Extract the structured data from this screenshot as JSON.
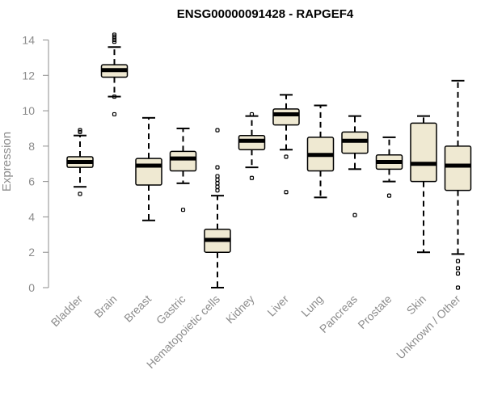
{
  "chart_data": {
    "type": "boxplot",
    "title": "ENSG00000091428 - RAPGEF4",
    "xlabel": "",
    "ylabel": "Expression",
    "ylim": [
      0,
      14
    ],
    "yticks": [
      0,
      2,
      4,
      6,
      8,
      10,
      12,
      14
    ],
    "box_color": "#efe9d2",
    "categories": [
      "Bladder",
      "Brain",
      "Breast",
      "Gastric",
      "Hematopoietic cells",
      "Kidney",
      "Liver",
      "Lung",
      "Pancreas",
      "Prostate",
      "Skin",
      "Unknown / Other"
    ],
    "boxes": [
      {
        "min": 5.7,
        "q1": 6.8,
        "median": 7.1,
        "q3": 7.4,
        "max": 8.6,
        "outliers": [
          5.3,
          8.8,
          8.9
        ]
      },
      {
        "min": 10.8,
        "q1": 11.9,
        "median": 12.3,
        "q3": 12.6,
        "max": 13.6,
        "outliers": [
          9.8,
          10.8,
          13.9,
          14.0,
          14.1,
          14.2,
          14.3
        ]
      },
      {
        "min": 3.8,
        "q1": 5.8,
        "median": 6.9,
        "q3": 7.3,
        "max": 9.6,
        "outliers": []
      },
      {
        "min": 5.9,
        "q1": 6.6,
        "median": 7.3,
        "q3": 7.7,
        "max": 9.0,
        "outliers": [
          4.4
        ]
      },
      {
        "min": 0.0,
        "q1": 2.0,
        "median": 2.7,
        "q3": 3.3,
        "max": 5.2,
        "outliers": [
          5.5,
          5.7,
          5.9,
          6.1,
          6.3,
          6.8,
          8.9
        ]
      },
      {
        "min": 6.8,
        "q1": 7.8,
        "median": 8.3,
        "q3": 8.6,
        "max": 9.7,
        "outliers": [
          6.2,
          9.8
        ]
      },
      {
        "min": 7.8,
        "q1": 9.2,
        "median": 9.8,
        "q3": 10.1,
        "max": 10.9,
        "outliers": [
          5.4,
          7.4
        ]
      },
      {
        "min": 5.1,
        "q1": 6.6,
        "median": 7.5,
        "q3": 8.5,
        "max": 10.3,
        "outliers": []
      },
      {
        "min": 6.7,
        "q1": 7.6,
        "median": 8.3,
        "q3": 8.8,
        "max": 9.7,
        "outliers": [
          4.1
        ]
      },
      {
        "min": 6.0,
        "q1": 6.7,
        "median": 7.1,
        "q3": 7.5,
        "max": 8.5,
        "outliers": [
          5.2
        ]
      },
      {
        "min": 2.0,
        "q1": 6.0,
        "median": 7.0,
        "q3": 9.3,
        "max": 9.7,
        "outliers": []
      },
      {
        "min": 1.9,
        "q1": 5.5,
        "median": 6.9,
        "q3": 8.0,
        "max": 11.7,
        "outliers": [
          0.0,
          0.8,
          1.1,
          1.5
        ]
      }
    ]
  }
}
